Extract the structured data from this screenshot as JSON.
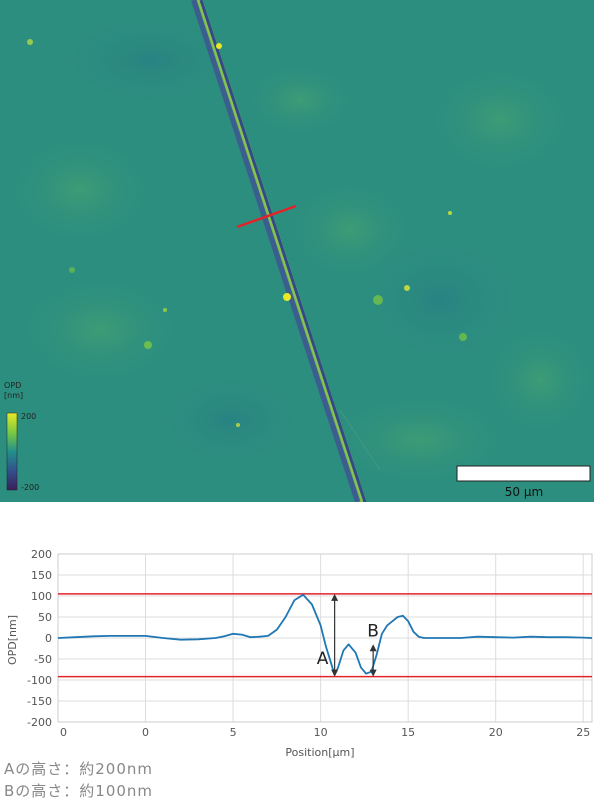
{
  "image": {
    "colorbar_title": "OPD\n[nm]",
    "colorbar_title_line1": "OPD",
    "colorbar_title_line2": "[nm]",
    "colorbar_max": "200",
    "colorbar_min": "-200",
    "scalebar_label": "50 µm",
    "colors": {
      "background": "#2c8e7f",
      "colorbar_top": "#e8e825",
      "colorbar_bottom": "#3b1f5a",
      "profile_line": "#e2232a"
    }
  },
  "chart_data": {
    "type": "line",
    "xlabel": "Position[µm]",
    "ylabel": "OPD[nm]",
    "xlim": [
      -5,
      25.5
    ],
    "ylim": [
      -200,
      200
    ],
    "x_ticks": [
      "0",
      "0",
      "5",
      "10",
      "15",
      "20",
      "25"
    ],
    "y_ticks": [
      "200",
      "150",
      "100",
      "50",
      "0",
      "-50",
      "-100",
      "-150",
      "-200"
    ],
    "grid": true,
    "reference_lines": [
      105,
      -92
    ],
    "series": [
      {
        "x": [
          -5,
          -4,
          -3,
          -2,
          -1,
          0,
          1,
          2,
          3,
          4,
          4.5,
          5,
          5.5,
          6,
          6.5,
          7,
          7.5,
          8,
          8.5,
          9,
          9.5,
          10,
          10.3,
          10.6,
          10.8,
          11.0,
          11.3,
          11.6,
          12.0,
          12.3,
          12.6,
          12.9,
          13.2,
          13.5,
          13.8,
          14.1,
          14.4,
          14.7,
          15.0,
          15.3,
          15.6,
          15.9,
          16.2,
          16.5,
          17,
          18,
          19,
          20,
          21,
          22,
          23,
          24,
          25,
          25.5
        ],
        "y": [
          0,
          2,
          4,
          5,
          5,
          5,
          0,
          -4,
          -3,
          0,
          4,
          10,
          8,
          2,
          3,
          5,
          20,
          50,
          90,
          103,
          80,
          30,
          -20,
          -60,
          -88,
          -70,
          -30,
          -15,
          -35,
          -70,
          -85,
          -80,
          -40,
          10,
          30,
          40,
          50,
          53,
          40,
          15,
          3,
          0,
          0,
          0,
          0,
          0,
          3,
          2,
          1,
          3,
          2,
          2,
          1,
          0
        ]
      }
    ],
    "annotations": [
      {
        "label": "A",
        "from": -92,
        "to": 105,
        "x": 10.8
      },
      {
        "label": "B",
        "from": -92,
        "to": -15,
        "x": 13.0
      }
    ],
    "colors": {
      "line": "#1f77b4",
      "reference": "#e2232a",
      "grid": "#dddddd"
    }
  },
  "notes": [
    "Aの高さ：約200nm",
    "Bの高さ：約100nm"
  ]
}
